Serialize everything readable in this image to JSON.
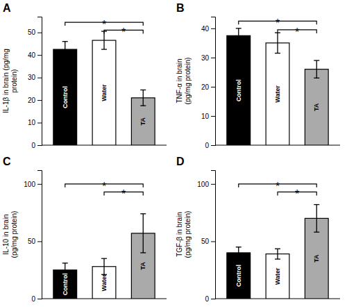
{
  "chart_data": [
    {
      "type": "bar",
      "title": "A",
      "ylabel": "IL-1β in brain (pg/mg\nprotein)",
      "categories": [
        "Control",
        "Water",
        "TA"
      ],
      "values": [
        42.5,
        46.5,
        21.0
      ],
      "errors": [
        3.5,
        4.0,
        3.5
      ],
      "colors": [
        "#000000",
        "#ffffff",
        "#aaaaaa"
      ],
      "ylim": [
        0,
        57
      ],
      "yticks": [
        0,
        10,
        20,
        30,
        40,
        50
      ],
      "tick_labels": "y",
      "grid": false,
      "annotations": [
        {
          "text": "*",
          "from": "Control",
          "to": "TA",
          "y": 54.5
        },
        {
          "text": "*",
          "from": "Water",
          "to": "TA",
          "y": 51.0
        }
      ]
    },
    {
      "type": "bar",
      "title": "B",
      "ylabel": "TNF-α in brain\n(pg/mg protein)",
      "categories": [
        "Control",
        "Water",
        "TA"
      ],
      "values": [
        37.5,
        35.0,
        26.0
      ],
      "errors": [
        2.5,
        3.5,
        3.0
      ],
      "colors": [
        "#000000",
        "#ffffff",
        "#aaaaaa"
      ],
      "ylim": [
        0,
        44
      ],
      "yticks": [
        0,
        10,
        20,
        30,
        40
      ],
      "tick_labels": "y",
      "grid": false,
      "annotations": [
        {
          "text": "*",
          "from": "Control",
          "to": "TA",
          "y": 42.5
        },
        {
          "text": "*",
          "from": "Water",
          "to": "TA",
          "y": 39.5
        }
      ]
    },
    {
      "type": "bar",
      "title": "C",
      "ylabel": "IL-10 in brain\n(pg/mg protein)",
      "categories": [
        "Control",
        "Water",
        "TA"
      ],
      "values": [
        25.0,
        28.0,
        57.0
      ],
      "errors": [
        6.0,
        7.0,
        17.0
      ],
      "colors": [
        "#000000",
        "#ffffff",
        "#aaaaaa"
      ],
      "ylim": [
        0,
        112
      ],
      "yticks": [
        0,
        50,
        100
      ],
      "tick_labels": "y",
      "grid": false,
      "annotations": [
        {
          "text": "*",
          "from": "Control",
          "to": "TA",
          "y": 100
        },
        {
          "text": "*",
          "from": "Water",
          "to": "TA",
          "y": 93
        }
      ]
    },
    {
      "type": "bar",
      "title": "D",
      "ylabel": "TGF-β in brain\n(pg/mg protein)",
      "categories": [
        "Control",
        "Water",
        "TA"
      ],
      "values": [
        40.0,
        39.0,
        70.0
      ],
      "errors": [
        5.0,
        4.5,
        12.0
      ],
      "colors": [
        "#000000",
        "#ffffff",
        "#aaaaaa"
      ],
      "ylim": [
        0,
        112
      ],
      "yticks": [
        0,
        50,
        100
      ],
      "tick_labels": "y",
      "grid": false,
      "annotations": [
        {
          "text": "*",
          "from": "Control",
          "to": "TA",
          "y": 100
        },
        {
          "text": "*",
          "from": "Water",
          "to": "TA",
          "y": 93
        }
      ]
    }
  ]
}
